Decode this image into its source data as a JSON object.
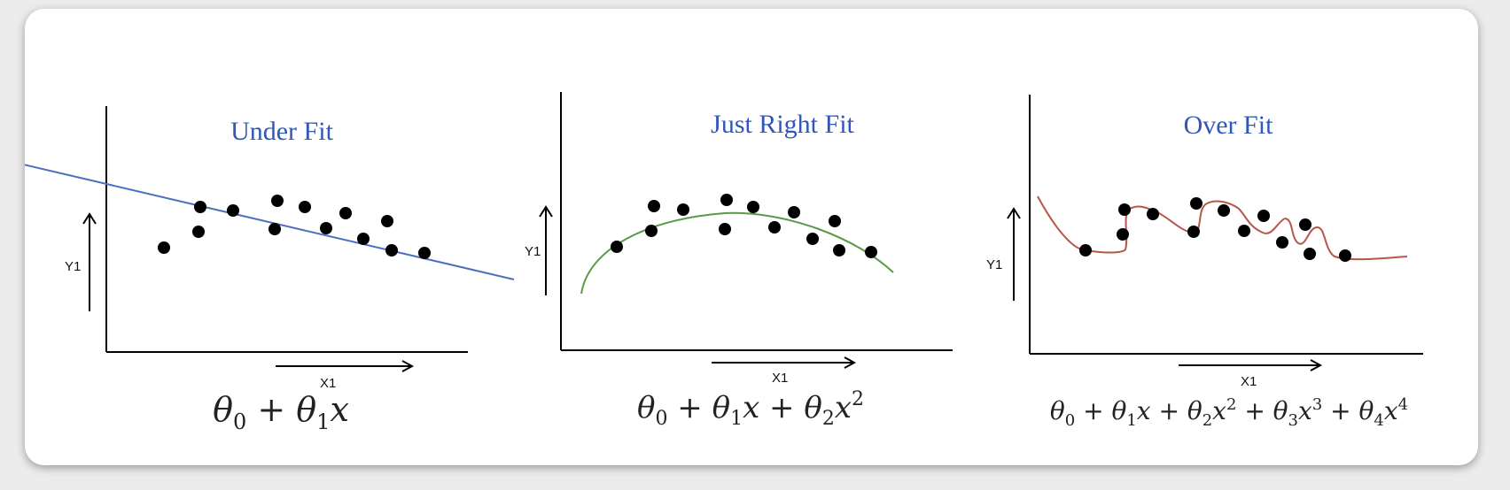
{
  "colors": {
    "title": "#2f56b8",
    "underfit_line": "#4d6fbf",
    "justright_curve": "#5a9a46",
    "overfit_curve": "#b5584a",
    "points": "#000000",
    "axes": "#000000"
  },
  "panels": [
    {
      "title": "Under Fit",
      "ylabel": "Y1",
      "xlabel": "X1",
      "formula": {
        "parts": [
          "θ",
          "0",
          " + θ",
          "1",
          "x"
        ]
      },
      "fit": "linear"
    },
    {
      "title": "Just Right Fit",
      "ylabel": "Y1",
      "xlabel": "X1",
      "formula": {
        "parts": [
          "θ",
          "0",
          " + θ",
          "1",
          "x + θ",
          "2",
          "x",
          "2"
        ]
      },
      "fit": "quadratic"
    },
    {
      "title": "Over Fit",
      "ylabel": "Y1",
      "xlabel": "X1",
      "formula": {
        "parts": [
          "θ",
          "0",
          " + θ",
          "1",
          "x + θ",
          "2",
          "x",
          "2",
          " + θ",
          "3",
          "x",
          "3",
          " + θ",
          "4",
          "x",
          "4"
        ]
      },
      "fit": "high-order polynomial"
    }
  ]
}
